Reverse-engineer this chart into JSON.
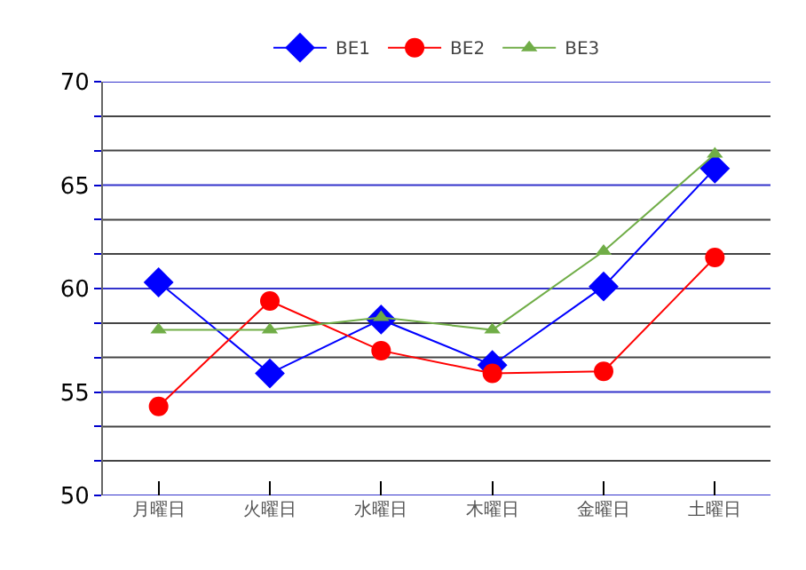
{
  "chart_data": {
    "type": "line",
    "categories": [
      "月曜日",
      "火曜日",
      "水曜日",
      "木曜日",
      "金曜日",
      "土曜日"
    ],
    "series": [
      {
        "name": "BE1",
        "color": "#0000ff",
        "marker": "diamond",
        "values": [
          60.3,
          55.9,
          58.5,
          56.3,
          60.1,
          65.8
        ]
      },
      {
        "name": "BE2",
        "color": "#ff0000",
        "marker": "circle",
        "values": [
          54.3,
          59.4,
          57.0,
          55.9,
          56.0,
          61.5
        ]
      },
      {
        "name": "BE3",
        "color": "#70ad47",
        "marker": "triangle",
        "values": [
          58.0,
          58.0,
          58.6,
          58.0,
          61.8,
          66.5
        ]
      }
    ],
    "ylim": [
      50,
      70
    ],
    "yticks": [
      50,
      {
        "value": 51.67,
        "label": null
      },
      {
        "value": 53.33,
        "label": null
      },
      55,
      {
        "value": 56.67,
        "label": null
      },
      {
        "value": 58.33,
        "label": null
      },
      60,
      {
        "value": 61.67,
        "label": null
      },
      {
        "value": 63.33,
        "label": null
      },
      65,
      {
        "value": 66.67,
        "label": null
      },
      {
        "value": 68.33,
        "label": null
      },
      70
    ],
    "grid": "y",
    "legend": "top",
    "line_style": "solid"
  }
}
